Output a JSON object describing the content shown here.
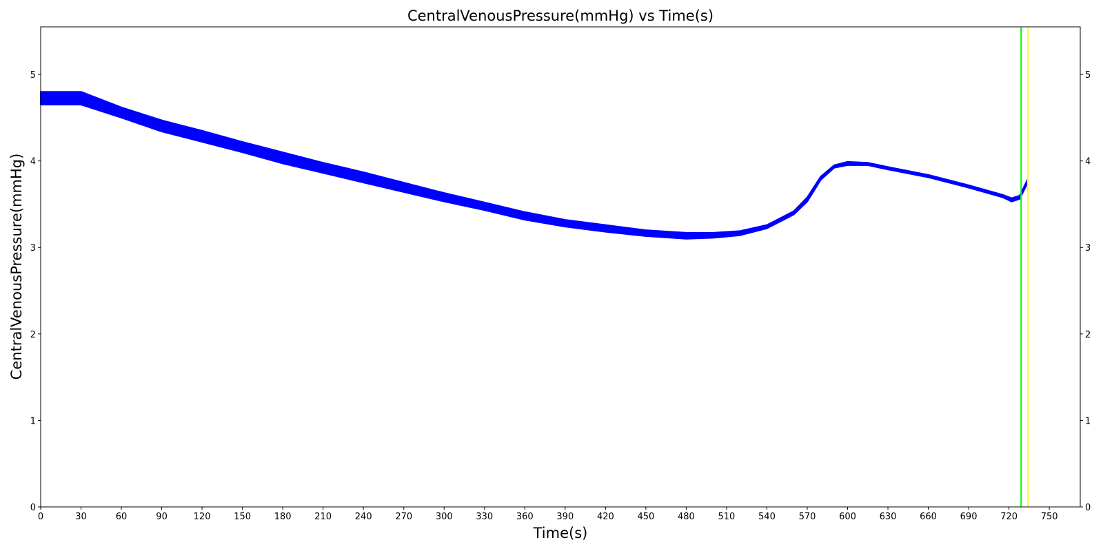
{
  "chart_data": {
    "type": "line",
    "title": "CentralVenousPressure(mmHg) vs Time(s)",
    "xlabel": "Time(s)",
    "ylabel": "CentralVenousPressure(mmHg)",
    "xlim": [
      0,
      773
    ],
    "ylim": [
      0,
      5.55
    ],
    "xticks": [
      0,
      30,
      60,
      90,
      120,
      150,
      180,
      210,
      240,
      270,
      300,
      330,
      360,
      390,
      420,
      450,
      480,
      510,
      540,
      570,
      600,
      630,
      660,
      690,
      720,
      750
    ],
    "yticks": [
      0,
      1,
      2,
      3,
      4,
      5
    ],
    "right_axis_ticks": true,
    "grid": false,
    "series": [
      {
        "color": "#0000ff",
        "band": true,
        "x": [
          0,
          30,
          60,
          90,
          120,
          150,
          180,
          210,
          240,
          270,
          300,
          330,
          360,
          390,
          420,
          450,
          480,
          500,
          520,
          540,
          560,
          570,
          580,
          590,
          600,
          615,
          630,
          660,
          690,
          715,
          722,
          728,
          734
        ],
        "upper": [
          4.8,
          4.8,
          4.62,
          4.47,
          4.35,
          4.22,
          4.1,
          3.98,
          3.87,
          3.75,
          3.63,
          3.52,
          3.41,
          3.32,
          3.26,
          3.2,
          3.17,
          3.17,
          3.19,
          3.26,
          3.42,
          3.58,
          3.82,
          3.95,
          3.99,
          3.98,
          3.93,
          3.84,
          3.72,
          3.61,
          3.57,
          3.6,
          3.79
        ],
        "lower": [
          4.65,
          4.65,
          4.5,
          4.34,
          4.22,
          4.1,
          3.97,
          3.86,
          3.75,
          3.64,
          3.53,
          3.43,
          3.32,
          3.24,
          3.18,
          3.13,
          3.1,
          3.11,
          3.14,
          3.22,
          3.38,
          3.53,
          3.78,
          3.92,
          3.95,
          3.95,
          3.9,
          3.81,
          3.69,
          3.58,
          3.53,
          3.56,
          3.75
        ]
      }
    ],
    "vlines": [
      {
        "x": 729,
        "color": "#00ff00"
      },
      {
        "x": 734,
        "color": "#ffff00"
      }
    ]
  }
}
